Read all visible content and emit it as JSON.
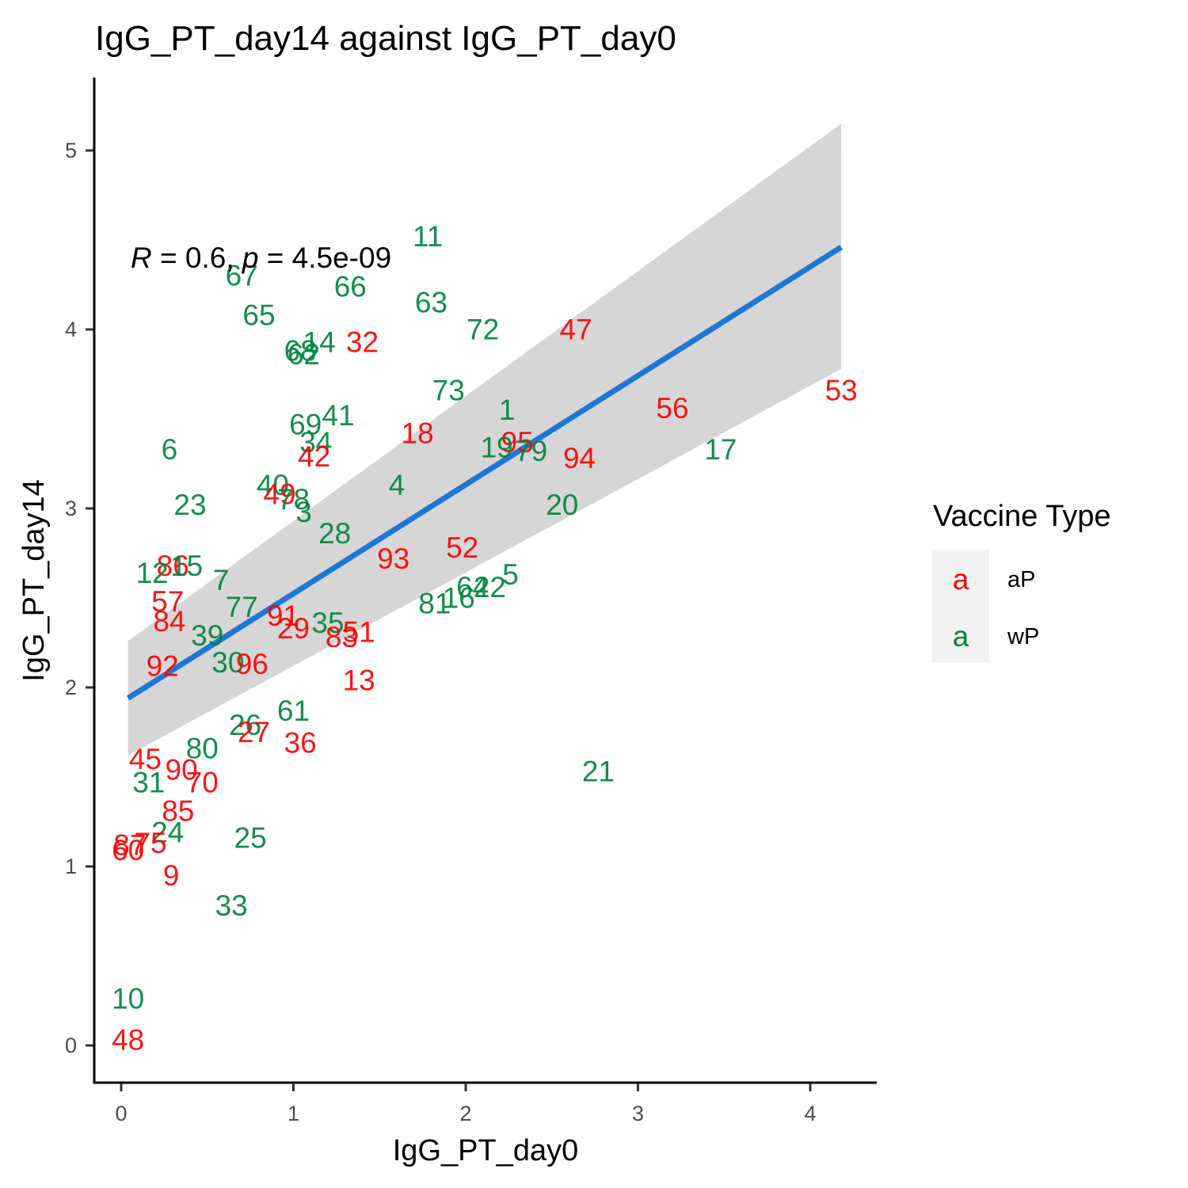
{
  "chart_data": {
    "type": "scatter",
    "title": "IgG_PT_day14 against IgG_PT_day0",
    "xlabel": "IgG_PT_day0",
    "ylabel": "IgG_PT_day14",
    "xlim": [
      -0.15,
      4.4
    ],
    "ylim": [
      -0.2,
      5.4
    ],
    "x_ticks": [
      "0",
      "1",
      "2",
      "3",
      "4"
    ],
    "y_ticks": [
      "0",
      "1",
      "2",
      "3",
      "4",
      "5"
    ],
    "grid": false,
    "annotation": {
      "r_symbol": "R",
      "r_text": " = 0.6, ",
      "p_symbol": "p",
      "p_text": " = 4.5e-09"
    },
    "regression": {
      "x": [
        0.04,
        4.18
      ],
      "y": [
        1.94,
        4.46
      ],
      "ci_upper": [
        2.26,
        5.15
      ],
      "ci_lower": [
        1.62,
        3.78
      ],
      "color": "#1f77d4"
    },
    "colors": {
      "aP": "#ff0000",
      "wP": "#00843c"
    },
    "legend": {
      "title": "Vaccine Type",
      "position": "right",
      "key_glyph": "a",
      "entries": [
        "aP",
        "wP"
      ]
    },
    "points": [
      {
        "label": "11",
        "x": 1.78,
        "y": 4.52,
        "group": "wP"
      },
      {
        "label": "67",
        "x": 0.7,
        "y": 4.3,
        "group": "wP"
      },
      {
        "label": "66",
        "x": 1.33,
        "y": 4.24,
        "group": "wP"
      },
      {
        "label": "63",
        "x": 1.8,
        "y": 4.15,
        "group": "wP"
      },
      {
        "label": "65",
        "x": 0.8,
        "y": 4.08,
        "group": "wP"
      },
      {
        "label": "72",
        "x": 2.1,
        "y": 4.0,
        "group": "wP"
      },
      {
        "label": "47",
        "x": 2.64,
        "y": 4.0,
        "group": "aP"
      },
      {
        "label": "14",
        "x": 1.15,
        "y": 3.93,
        "group": "wP"
      },
      {
        "label": "32",
        "x": 1.4,
        "y": 3.93,
        "group": "aP"
      },
      {
        "label": "68",
        "x": 1.04,
        "y": 3.88,
        "group": "wP"
      },
      {
        "label": "62",
        "x": 1.06,
        "y": 3.86,
        "group": "wP"
      },
      {
        "label": "73",
        "x": 1.9,
        "y": 3.66,
        "group": "wP"
      },
      {
        "label": "53",
        "x": 4.18,
        "y": 3.66,
        "group": "aP"
      },
      {
        "label": "56",
        "x": 3.2,
        "y": 3.56,
        "group": "aP"
      },
      {
        "label": "1",
        "x": 2.24,
        "y": 3.55,
        "group": "wP"
      },
      {
        "label": "41",
        "x": 1.26,
        "y": 3.52,
        "group": "wP"
      },
      {
        "label": "69",
        "x": 1.07,
        "y": 3.47,
        "group": "wP"
      },
      {
        "label": "18",
        "x": 1.72,
        "y": 3.42,
        "group": "aP"
      },
      {
        "label": "95",
        "x": 2.3,
        "y": 3.37,
        "group": "aP"
      },
      {
        "label": "34",
        "x": 1.13,
        "y": 3.37,
        "group": "wP"
      },
      {
        "label": "19",
        "x": 2.18,
        "y": 3.34,
        "group": "wP"
      },
      {
        "label": "79",
        "x": 2.38,
        "y": 3.32,
        "group": "wP"
      },
      {
        "label": "6",
        "x": 0.28,
        "y": 3.33,
        "group": "wP"
      },
      {
        "label": "17",
        "x": 3.48,
        "y": 3.33,
        "group": "wP"
      },
      {
        "label": "42",
        "x": 1.12,
        "y": 3.29,
        "group": "aP"
      },
      {
        "label": "94",
        "x": 2.66,
        "y": 3.28,
        "group": "aP"
      },
      {
        "label": "4",
        "x": 1.6,
        "y": 3.13,
        "group": "wP"
      },
      {
        "label": "40",
        "x": 0.88,
        "y": 3.13,
        "group": "wP"
      },
      {
        "label": "49",
        "x": 0.92,
        "y": 3.08,
        "group": "aP"
      },
      {
        "label": "78",
        "x": 1.0,
        "y": 3.05,
        "group": "wP"
      },
      {
        "label": "23",
        "x": 0.4,
        "y": 3.02,
        "group": "wP"
      },
      {
        "label": "20",
        "x": 2.56,
        "y": 3.02,
        "group": "wP"
      },
      {
        "label": "3",
        "x": 1.06,
        "y": 2.98,
        "group": "wP"
      },
      {
        "label": "28",
        "x": 1.24,
        "y": 2.86,
        "group": "wP"
      },
      {
        "label": "52",
        "x": 1.98,
        "y": 2.78,
        "group": "aP"
      },
      {
        "label": "93",
        "x": 1.58,
        "y": 2.72,
        "group": "aP"
      },
      {
        "label": "86",
        "x": 0.3,
        "y": 2.68,
        "group": "aP"
      },
      {
        "label": "15",
        "x": 0.38,
        "y": 2.68,
        "group": "wP"
      },
      {
        "label": "12",
        "x": 0.18,
        "y": 2.64,
        "group": "wP"
      },
      {
        "label": "5",
        "x": 2.26,
        "y": 2.63,
        "group": "wP"
      },
      {
        "label": "7",
        "x": 0.58,
        "y": 2.6,
        "group": "wP"
      },
      {
        "label": "64",
        "x": 2.04,
        "y": 2.56,
        "group": "wP"
      },
      {
        "label": "22",
        "x": 2.14,
        "y": 2.56,
        "group": "wP"
      },
      {
        "label": "16",
        "x": 1.96,
        "y": 2.5,
        "group": "wP"
      },
      {
        "label": "57",
        "x": 0.27,
        "y": 2.48,
        "group": "aP"
      },
      {
        "label": "81",
        "x": 1.82,
        "y": 2.47,
        "group": "wP"
      },
      {
        "label": "77",
        "x": 0.7,
        "y": 2.45,
        "group": "wP"
      },
      {
        "label": "91",
        "x": 0.94,
        "y": 2.4,
        "group": "aP"
      },
      {
        "label": "84",
        "x": 0.28,
        "y": 2.37,
        "group": "aP"
      },
      {
        "label": "35",
        "x": 1.2,
        "y": 2.36,
        "group": "wP"
      },
      {
        "label": "29",
        "x": 1.0,
        "y": 2.33,
        "group": "aP"
      },
      {
        "label": "51",
        "x": 1.38,
        "y": 2.31,
        "group": "aP"
      },
      {
        "label": "39",
        "x": 0.5,
        "y": 2.29,
        "group": "wP"
      },
      {
        "label": "83",
        "x": 1.28,
        "y": 2.28,
        "group": "aP"
      },
      {
        "label": "30",
        "x": 0.62,
        "y": 2.14,
        "group": "wP"
      },
      {
        "label": "96",
        "x": 0.76,
        "y": 2.13,
        "group": "aP"
      },
      {
        "label": "92",
        "x": 0.24,
        "y": 2.12,
        "group": "aP"
      },
      {
        "label": "13",
        "x": 1.38,
        "y": 2.04,
        "group": "aP"
      },
      {
        "label": "61",
        "x": 1.0,
        "y": 1.87,
        "group": "wP"
      },
      {
        "label": "26",
        "x": 0.72,
        "y": 1.79,
        "group": "wP"
      },
      {
        "label": "27",
        "x": 0.77,
        "y": 1.75,
        "group": "aP"
      },
      {
        "label": "36",
        "x": 1.04,
        "y": 1.69,
        "group": "aP"
      },
      {
        "label": "80",
        "x": 0.47,
        "y": 1.66,
        "group": "wP"
      },
      {
        "label": "45",
        "x": 0.14,
        "y": 1.6,
        "group": "aP"
      },
      {
        "label": "90",
        "x": 0.35,
        "y": 1.54,
        "group": "aP"
      },
      {
        "label": "21",
        "x": 2.77,
        "y": 1.53,
        "group": "wP"
      },
      {
        "label": "31",
        "x": 0.16,
        "y": 1.47,
        "group": "wP"
      },
      {
        "label": "70",
        "x": 0.47,
        "y": 1.47,
        "group": "aP"
      },
      {
        "label": "85",
        "x": 0.33,
        "y": 1.31,
        "group": "aP"
      },
      {
        "label": "24",
        "x": 0.27,
        "y": 1.19,
        "group": "wP"
      },
      {
        "label": "25",
        "x": 0.75,
        "y": 1.16,
        "group": "wP"
      },
      {
        "label": "87",
        "x": 0.05,
        "y": 1.12,
        "group": "aP"
      },
      {
        "label": "75",
        "x": 0.17,
        "y": 1.13,
        "group": "aP"
      },
      {
        "label": "60",
        "x": 0.04,
        "y": 1.09,
        "group": "aP"
      },
      {
        "label": "9",
        "x": 0.29,
        "y": 0.95,
        "group": "aP"
      },
      {
        "label": "33",
        "x": 0.64,
        "y": 0.78,
        "group": "wP"
      },
      {
        "label": "10",
        "x": 0.04,
        "y": 0.26,
        "group": "wP"
      },
      {
        "label": "48",
        "x": 0.04,
        "y": 0.03,
        "group": "aP"
      }
    ]
  }
}
